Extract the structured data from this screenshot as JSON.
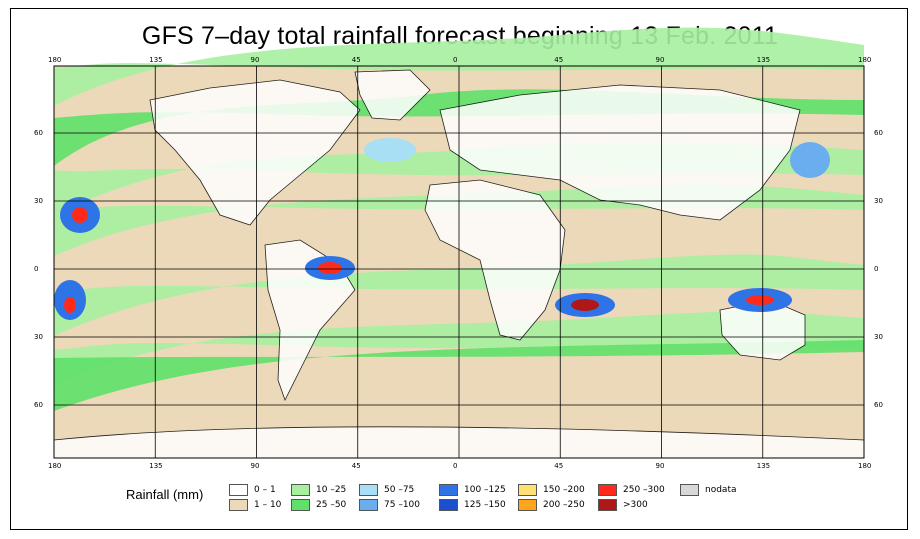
{
  "title": "GFS 7–day total rainfall forecast beginning 13 Feb. 2011",
  "axes": {
    "lon_ticks": [
      "180",
      "135",
      "90",
      "45",
      "0",
      "45",
      "90",
      "135",
      "180"
    ],
    "lat_ticks": [
      "60",
      "30",
      "0",
      "30",
      "60"
    ]
  },
  "legend": {
    "title": "Rainfall (mm)",
    "items": [
      {
        "label": "0 – 1",
        "color": "#ffffff"
      },
      {
        "label": "1 – 10",
        "color": "#ecd9b9"
      },
      {
        "label": "10 –25",
        "color": "#a6f0a0"
      },
      {
        "label": "25 –50",
        "color": "#5fe06a"
      },
      {
        "label": "50 –75",
        "color": "#a8dff5"
      },
      {
        "label": "75 –100",
        "color": "#6aaef0"
      },
      {
        "label": "100 –125",
        "color": "#2e74e6"
      },
      {
        "label": "125 –150",
        "color": "#1a4fd0"
      },
      {
        "label": "150 –200",
        "color": "#ffe070"
      },
      {
        "label": "200 –250",
        "color": "#ffa51a"
      },
      {
        "label": "250 –300",
        "color": "#ff2a1a"
      },
      {
        "label": ">300",
        "color": "#b01818"
      },
      {
        "label": "nodata",
        "color": "#d8d8d8"
      }
    ]
  },
  "colors": {
    "ocean_base": "#ecd9b9",
    "land": "#ffffff",
    "grid": "#000000"
  }
}
